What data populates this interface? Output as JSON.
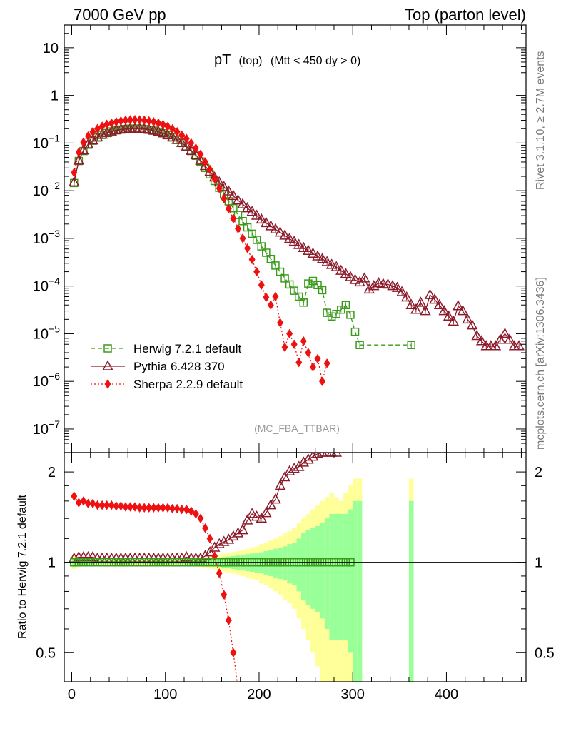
{
  "header": {
    "left": "7000 GeV pp",
    "right": "Top (parton level)"
  },
  "side_labels": {
    "rivet": "Rivet 3.1.10, ≥ 2.7M events",
    "mcplots": "mcplots.cern.ch [arXiv:1306.3436]"
  },
  "plot_title": {
    "main": "pT",
    "sub1": "(top)",
    "sub2": "(Mtt < 450 dy > 0)"
  },
  "analysis_tag": "(MC_FBA_TTBAR)",
  "ratio_ylabel": "Ratio to Herwig 7.2.1 default",
  "colors": {
    "herwig": "#3a9a1a",
    "pythia": "#8b1a2a",
    "sherpa": "#ee1111",
    "band_inner": "#99ff99",
    "band_outer": "#ffff99"
  },
  "chart_data": {
    "type": "scatter",
    "xlim": [
      -8,
      485
    ],
    "main": {
      "yscale": "log",
      "ylim": [
        3.2e-08,
        30
      ],
      "y_ticks": [
        {
          "v": 1e-07,
          "base": "10",
          "exp": "−7"
        },
        {
          "v": 1e-06,
          "base": "10",
          "exp": "−6"
        },
        {
          "v": 1e-05,
          "base": "10",
          "exp": "−5"
        },
        {
          "v": 0.0001,
          "base": "10",
          "exp": "−4"
        },
        {
          "v": 0.001,
          "base": "10",
          "exp": "−3"
        },
        {
          "v": 0.01,
          "base": "10",
          "exp": "−2"
        },
        {
          "v": 0.1,
          "base": "10",
          "exp": "−1"
        },
        {
          "v": 1,
          "base": "1",
          "exp": ""
        },
        {
          "v": 10,
          "base": "10",
          "exp": ""
        }
      ]
    },
    "ratio": {
      "yscale": "log",
      "ylim": [
        0.4,
        2.32
      ],
      "y_ticks": [
        {
          "v": 0.5,
          "label": "0.5"
        },
        {
          "v": 1,
          "label": "1"
        },
        {
          "v": 2,
          "label": "2"
        }
      ]
    },
    "x_ticks": [
      0,
      100,
      200,
      300,
      400
    ],
    "series": [
      {
        "name": "Herwig 7.2.1 default",
        "key": "herwig",
        "marker": "open-square",
        "line": "dashed",
        "x": [
          2.5,
          7.5,
          12.5,
          17.5,
          22.5,
          27.5,
          32.5,
          37.5,
          42.5,
          47.5,
          52.5,
          57.5,
          62.5,
          67.5,
          72.5,
          77.5,
          82.5,
          87.5,
          92.5,
          97.5,
          102.5,
          107.5,
          112.5,
          117.5,
          122.5,
          127.5,
          132.5,
          137.5,
          142.5,
          147.5,
          152.5,
          157.5,
          162.5,
          167.5,
          172.5,
          177.5,
          182.5,
          187.5,
          192.5,
          197.5,
          202.5,
          207.5,
          212.5,
          217.5,
          222.5,
          227.5,
          232.5,
          237.5,
          242.5,
          247.5,
          252.5,
          257.5,
          262.5,
          267.5,
          272.5,
          277.5,
          282.5,
          287.5,
          292.5,
          297.5,
          302.5,
          307.5,
          362.5
        ],
        "y": [
          0.0145,
          0.042,
          0.068,
          0.092,
          0.112,
          0.13,
          0.148,
          0.162,
          0.175,
          0.185,
          0.192,
          0.197,
          0.2,
          0.201,
          0.2,
          0.196,
          0.19,
          0.182,
          0.172,
          0.16,
          0.146,
          0.131,
          0.116,
          0.1,
          0.084,
          0.068,
          0.054,
          0.041,
          0.03,
          0.022,
          0.016,
          0.0115,
          0.0083,
          0.006,
          0.0043,
          0.0031,
          0.0023,
          0.0017,
          0.00125,
          0.00093,
          0.00068,
          0.0005,
          0.00037,
          0.00027,
          0.0002,
          0.000145,
          0.000108,
          8e-05,
          6e-05,
          4.5e-05,
          0.000113,
          0.000128,
          0.000105,
          8.2e-05,
          2.75e-05,
          2.3e-05,
          2.6e-05,
          3.2e-05,
          4e-05,
          2.5e-05,
          1.1e-05,
          5.8e-06,
          5.8e-06
        ]
      },
      {
        "name": "Pythia 6.428 370",
        "key": "pythia",
        "marker": "open-triangle",
        "line": "solid",
        "x": [
          2.5,
          7.5,
          12.5,
          17.5,
          22.5,
          27.5,
          32.5,
          37.5,
          42.5,
          47.5,
          52.5,
          57.5,
          62.5,
          67.5,
          72.5,
          77.5,
          82.5,
          87.5,
          92.5,
          97.5,
          102.5,
          107.5,
          112.5,
          117.5,
          122.5,
          127.5,
          132.5,
          137.5,
          142.5,
          147.5,
          152.5,
          157.5,
          162.5,
          167.5,
          172.5,
          177.5,
          182.5,
          187.5,
          192.5,
          197.5,
          202.5,
          207.5,
          212.5,
          217.5,
          222.5,
          227.5,
          232.5,
          237.5,
          242.5,
          247.5,
          252.5,
          257.5,
          262.5,
          267.5,
          272.5,
          277.5,
          282.5,
          287.5,
          292.5,
          297.5,
          302.5,
          307.5,
          312.5,
          317.5,
          322.5,
          327.5,
          332.5,
          337.5,
          342.5,
          347.5,
          352.5,
          357.5,
          362.5,
          367.5,
          372.5,
          377.5,
          382.5,
          387.5,
          392.5,
          397.5,
          402.5,
          407.5,
          412.5,
          417.5,
          422.5,
          427.5,
          432.5,
          437.5,
          442.5,
          447.5,
          452.5,
          457.5,
          462.5,
          467.5,
          472.5,
          477.5
        ],
        "y": [
          0.015,
          0.043,
          0.07,
          0.094,
          0.114,
          0.132,
          0.15,
          0.164,
          0.176,
          0.186,
          0.193,
          0.198,
          0.201,
          0.202,
          0.201,
          0.197,
          0.191,
          0.183,
          0.173,
          0.161,
          0.147,
          0.132,
          0.117,
          0.101,
          0.085,
          0.069,
          0.056,
          0.043,
          0.033,
          0.025,
          0.019,
          0.015,
          0.012,
          0.0097,
          0.0078,
          0.0063,
          0.0052,
          0.0043,
          0.0036,
          0.003,
          0.0025,
          0.0021,
          0.0018,
          0.00155,
          0.00133,
          0.00115,
          0.00098,
          0.00085,
          0.00073,
          0.00063,
          0.00055,
          0.00048,
          0.00042,
          0.00037,
          0.00032,
          0.00028,
          0.00025,
          0.00021,
          0.00018,
          0.000155,
          0.000135,
          0.00012,
          0.000145,
          8.5e-05,
          0.0001,
          0.000115,
          0.00011,
          0.000108,
          0.0001,
          9.2e-05,
          7.5e-05,
          5.8e-05,
          4e-05,
          3.2e-05,
          4.5e-05,
          3e-05,
          6.5e-05,
          5.2e-05,
          4e-05,
          3e-05,
          2.3e-05,
          1.8e-05,
          3.8e-05,
          3e-05,
          2e-05,
          1.5e-05,
          9e-06,
          7e-06,
          5.5e-06,
          5.5e-06,
          5.5e-06,
          7.5e-06,
          1e-05,
          7.5e-06,
          5.5e-06,
          5.5e-06
        ],
        "ratio": [
          1.03,
          1.04,
          1.04,
          1.04,
          1.04,
          1.03,
          1.03,
          1.03,
          1.03,
          1.03,
          1.03,
          1.03,
          1.03,
          1.03,
          1.03,
          1.03,
          1.03,
          1.03,
          1.03,
          1.03,
          1.03,
          1.03,
          1.03,
          1.03,
          1.04,
          1.03,
          1.03,
          1.03,
          1.05,
          1.08,
          1.12,
          1.15,
          1.17,
          1.19,
          1.22,
          1.25,
          1.28,
          1.38,
          1.45,
          1.42,
          1.4,
          1.46,
          1.55,
          1.62,
          1.8,
          1.92,
          2.01,
          2.05,
          2.08,
          2.15,
          2.2,
          2.25,
          2.3,
          2.32,
          2.32,
          2.32,
          2.32
        ]
      },
      {
        "name": "Sherpa 2.2.9 default",
        "key": "sherpa",
        "marker": "filled-diamond",
        "line": "dotted",
        "x": [
          2.5,
          7.5,
          12.5,
          17.5,
          22.5,
          27.5,
          32.5,
          37.5,
          42.5,
          47.5,
          52.5,
          57.5,
          62.5,
          67.5,
          72.5,
          77.5,
          82.5,
          87.5,
          92.5,
          97.5,
          102.5,
          107.5,
          112.5,
          117.5,
          122.5,
          127.5,
          132.5,
          137.5,
          142.5,
          147.5,
          152.5,
          157.5,
          162.5,
          167.5,
          172.5,
          177.5,
          182.5,
          187.5,
          192.5,
          197.5,
          202.5,
          207.5,
          212.5,
          217.5,
          222.5,
          227.5,
          232.5,
          237.5,
          242.5,
          247.5,
          252.5,
          257.5,
          262.5,
          267.5,
          272.5
        ],
        "y": [
          0.024,
          0.064,
          0.104,
          0.14,
          0.172,
          0.2,
          0.224,
          0.246,
          0.262,
          0.278,
          0.29,
          0.3,
          0.306,
          0.308,
          0.305,
          0.3,
          0.29,
          0.278,
          0.262,
          0.244,
          0.222,
          0.198,
          0.172,
          0.146,
          0.124,
          0.1,
          0.078,
          0.058,
          0.04,
          0.028,
          0.018,
          0.0112,
          0.0068,
          0.0042,
          0.0026,
          0.0016,
          0.001,
          0.00062,
          0.00036,
          0.0002,
          0.000105,
          5.8e-05,
          4e-05,
          6e-05,
          1.7e-05,
          5.2e-06,
          1e-05,
          6e-06,
          2.5e-06,
          7e-06,
          4e-06,
          2e-06,
          3e-06,
          1e-06,
          2.4e-06
        ],
        "ratio": [
          1.66,
          1.58,
          1.6,
          1.57,
          1.57,
          1.55,
          1.55,
          1.55,
          1.55,
          1.54,
          1.54,
          1.53,
          1.53,
          1.53,
          1.52,
          1.52,
          1.52,
          1.52,
          1.52,
          1.52,
          1.52,
          1.51,
          1.51,
          1.5,
          1.5,
          1.48,
          1.45,
          1.4,
          1.3,
          1.2,
          1.05,
          0.92,
          0.78,
          0.64,
          0.5,
          0.38
        ]
      }
    ],
    "mc_band": {
      "x_edges": [
        0,
        5,
        10,
        15,
        20,
        25,
        30,
        35,
        40,
        45,
        50,
        55,
        60,
        65,
        70,
        75,
        80,
        85,
        90,
        95,
        100,
        105,
        110,
        115,
        120,
        125,
        130,
        135,
        140,
        145,
        150,
        155,
        160,
        165,
        170,
        175,
        180,
        185,
        190,
        195,
        200,
        205,
        210,
        215,
        220,
        225,
        230,
        235,
        240,
        245,
        250,
        255,
        260,
        265,
        270,
        275,
        280,
        285,
        290,
        295,
        300,
        305,
        310
      ],
      "inner": [
        0.035,
        0.025,
        0.02,
        0.018,
        0.016,
        0.015,
        0.014,
        0.013,
        0.013,
        0.012,
        0.012,
        0.012,
        0.012,
        0.012,
        0.012,
        0.012,
        0.012,
        0.012,
        0.012,
        0.013,
        0.013,
        0.014,
        0.014,
        0.015,
        0.016,
        0.017,
        0.019,
        0.021,
        0.024,
        0.027,
        0.031,
        0.035,
        0.04,
        0.045,
        0.05,
        0.055,
        0.06,
        0.065,
        0.07,
        0.075,
        0.08,
        0.09,
        0.1,
        0.11,
        0.12,
        0.13,
        0.15,
        0.16,
        0.2,
        0.25,
        0.28,
        0.3,
        0.32,
        0.35,
        0.4,
        0.45,
        0.45,
        0.45,
        0.45,
        0.5,
        0.6,
        0.6
      ],
      "outer": [
        0.05,
        0.035,
        0.03,
        0.026,
        0.024,
        0.022,
        0.021,
        0.02,
        0.02,
        0.019,
        0.019,
        0.019,
        0.019,
        0.019,
        0.019,
        0.019,
        0.019,
        0.019,
        0.019,
        0.02,
        0.02,
        0.021,
        0.022,
        0.024,
        0.026,
        0.028,
        0.031,
        0.035,
        0.04,
        0.046,
        0.053,
        0.06,
        0.068,
        0.075,
        0.082,
        0.09,
        0.1,
        0.11,
        0.12,
        0.13,
        0.15,
        0.16,
        0.18,
        0.2,
        0.22,
        0.25,
        0.27,
        0.3,
        0.35,
        0.4,
        0.45,
        0.5,
        0.55,
        0.6,
        0.65,
        0.7,
        0.65,
        0.6,
        0.7,
        0.8,
        0.9,
        0.9
      ],
      "extra_bin": {
        "x_edges": [
          360,
          365
        ],
        "inner": 0.6,
        "outer": 0.9
      }
    },
    "legend": {
      "position": "lower-left",
      "labels": [
        "Herwig 7.2.1 default",
        "Pythia 6.428 370",
        "Sherpa 2.2.9 default"
      ]
    }
  }
}
